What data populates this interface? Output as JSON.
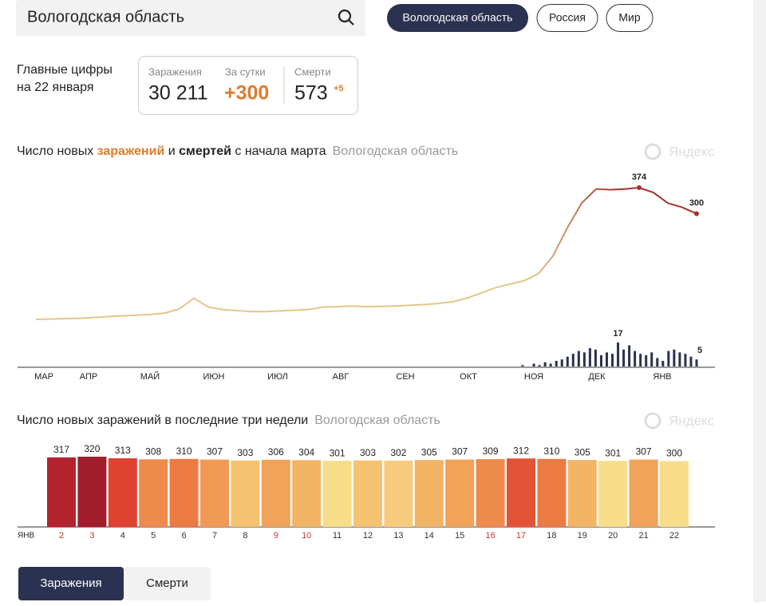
{
  "search": {
    "value": "Вологодская область"
  },
  "tabs": [
    "Вологодская область",
    "Россия",
    "Мир"
  ],
  "summary": {
    "heading": [
      "Главные цифры",
      "на 22 января"
    ],
    "cases": {
      "label": "Заражения",
      "value": "30 211"
    },
    "daily": {
      "label": "За сутки",
      "value": "+300"
    },
    "deaths": {
      "label": "Смерти",
      "value": "573",
      "delta": "+5"
    }
  },
  "chart_data": [
    {
      "type": "line",
      "title_parts": [
        "Число новых ",
        "заражений",
        " и ",
        "смертей",
        " с начала марта"
      ],
      "region": "Вологодская область",
      "watermark": "Яндекс",
      "months": [
        "МАР",
        "АПР",
        "МАЙ",
        "ИЮН",
        "ИЮЛ",
        "АВГ",
        "СЕН",
        "ОКТ",
        "НОЯ",
        "ДЕК",
        "ЯНВ"
      ],
      "infections": {
        "colors": [
          "#e3c68c",
          "#a3332b"
        ],
        "values": [
          0,
          1,
          2,
          3,
          5,
          8,
          10,
          12,
          14,
          18,
          30,
          60,
          35,
          28,
          25,
          22,
          22,
          24,
          26,
          28,
          35,
          36,
          38,
          36,
          37,
          38,
          40,
          42,
          45,
          50,
          60,
          75,
          90,
          100,
          110,
          130,
          180,
          260,
          330,
          370,
          368,
          370,
          374,
          360,
          330,
          318,
          300
        ]
      },
      "deaths": {
        "color": "#2b3150",
        "values": [
          1,
          0,
          2,
          1,
          3,
          2,
          4,
          5,
          7,
          9,
          11,
          10,
          13,
          12,
          8,
          10,
          9,
          17,
          12,
          15,
          11,
          9,
          8,
          10,
          6,
          4,
          11,
          12,
          10,
          9,
          7,
          5
        ]
      }
    },
    {
      "type": "bar",
      "title": "Число новых заражений в последние три недели",
      "region": "Вологодская область",
      "watermark": "Яндекс",
      "month": "ЯНВ",
      "categories": [
        "2",
        "3",
        "4",
        "5",
        "6",
        "7",
        "8",
        "9",
        "10",
        "11",
        "12",
        "13",
        "14",
        "15",
        "16",
        "17",
        "18",
        "19",
        "20",
        "21",
        "22"
      ],
      "category_colors": [
        "#c0392b",
        "#c0392b",
        "#333",
        "#333",
        "#333",
        "#333",
        "#333",
        "#c0392b",
        "#c0392b",
        "#333",
        "#333",
        "#333",
        "#333",
        "#333",
        "#c0392b",
        "#c0392b",
        "#333",
        "#333",
        "#333",
        "#333",
        "#333"
      ],
      "values": [
        317,
        320,
        313,
        308,
        310,
        307,
        303,
        306,
        304,
        301,
        303,
        302,
        305,
        307,
        309,
        312,
        310,
        305,
        301,
        307,
        300
      ],
      "colors": [
        "#b3232e",
        "#a01e2c",
        "#dd4330",
        "#ee8a4c",
        "#ec7a43",
        "#f09a55",
        "#f5c271",
        "#f0a359",
        "#f2b465",
        "#f7dc8a",
        "#f5c271",
        "#f6cb7b",
        "#f2b465",
        "#f0a359",
        "#ee8a4c",
        "#e35436",
        "#ec7a43",
        "#f2b465",
        "#f7dc8a",
        "#f0a359",
        "#f7dc8a"
      ]
    }
  ],
  "buttons": [
    "Заражения",
    "Смерти"
  ]
}
